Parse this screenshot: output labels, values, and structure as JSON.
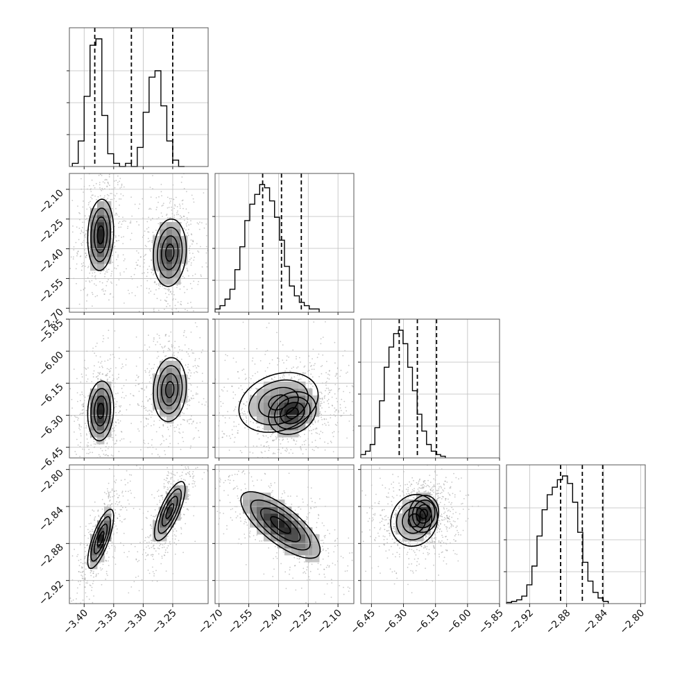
{
  "figure": {
    "type": "corner-plot",
    "description_colors": {
      "contour": "#000000",
      "density_dark": "#222222",
      "density_light": "#d9d9d9",
      "scatter": "#9a9a9a",
      "grid": "#bcbcbc"
    }
  },
  "chart_data": {
    "type": "corner",
    "parameters": [
      {
        "key": "p0",
        "range": [
          -3.425,
          -3.19
        ],
        "ticks": [
          "−3.40",
          "−3.35",
          "−3.30",
          "−3.25"
        ],
        "tick_values": [
          -3.4,
          -3.35,
          -3.3,
          -3.25
        ],
        "quantiles": [
          -3.382,
          -3.32,
          -3.25
        ],
        "histogram": {
          "bins_left": -3.42,
          "bin_width": 0.01,
          "counts": [
            1,
            8,
            22,
            38,
            40,
            16,
            4,
            1,
            0,
            1,
            0,
            6,
            17,
            28,
            30,
            19,
            8,
            2,
            0
          ]
        }
      },
      {
        "key": "p1",
        "range": [
          -2.72,
          -2.02
        ],
        "ticks": [
          "−2.70",
          "−2.55",
          "−2.40",
          "−2.25",
          "−2.10"
        ],
        "tick_values": [
          -2.7,
          -2.55,
          -2.4,
          -2.25,
          -2.1
        ],
        "quantiles": [
          -2.48,
          -2.385,
          -2.285
        ],
        "histogram": {
          "bins_left": -2.72,
          "bin_width": 0.025,
          "counts": [
            1,
            2,
            4,
            7,
            13,
            20,
            28,
            33,
            36,
            39,
            38,
            34,
            29,
            22,
            14,
            8,
            5,
            3,
            2,
            1,
            1
          ]
        }
      },
      {
        "key": "p2",
        "range": [
          -6.5,
          -5.85
        ],
        "ticks": [
          "−6.45",
          "−6.30",
          "−6.15",
          "−6.00",
          "−5.85"
        ],
        "tick_values": [
          -6.45,
          -6.3,
          -6.15,
          -6.0,
          -5.85
        ],
        "quantiles": [
          -6.32,
          -6.235,
          -6.145
        ],
        "histogram": {
          "bins_left": -6.5,
          "bin_width": 0.022,
          "counts": [
            1,
            2,
            4,
            9,
            17,
            27,
            33,
            37,
            38,
            34,
            27,
            20,
            13,
            8,
            4,
            2,
            1,
            0.5
          ]
        }
      },
      {
        "key": "p3",
        "range": [
          -2.945,
          -2.795
        ],
        "ticks": [
          "−2.92",
          "−2.88",
          "−2.84",
          "−2.80"
        ],
        "tick_values": [
          -2.92,
          -2.88,
          -2.84,
          -2.8
        ],
        "quantiles": [
          -2.8865,
          -2.863,
          -2.841
        ],
        "histogram": {
          "bins_left": -2.945,
          "bin_width": 0.0055,
          "counts": [
            0.3,
            0.6,
            1,
            2,
            5,
            10,
            18,
            25,
            29,
            31,
            33,
            34,
            32,
            27,
            19,
            11,
            6,
            3,
            1.5,
            0.6
          ]
        }
      }
    ],
    "pairs": [
      {
        "x": 0,
        "y": 1,
        "clusters": [
          {
            "cx": -3.372,
            "cy": -2.33,
            "sx": 0.011,
            "sy": 0.09,
            "rho": 0.1
          },
          {
            "cx": -3.255,
            "cy": -2.42,
            "sx": 0.014,
            "sy": 0.085,
            "rho": 0.1
          }
        ]
      },
      {
        "x": 0,
        "y": 2,
        "clusters": [
          {
            "cx": -3.372,
            "cy": -6.28,
            "sx": 0.011,
            "sy": 0.07,
            "rho": 0.1
          },
          {
            "cx": -3.255,
            "cy": -6.18,
            "sx": 0.014,
            "sy": 0.075,
            "rho": 0.1
          }
        ]
      },
      {
        "x": 0,
        "y": 3,
        "clusters": [
          {
            "cx": -3.372,
            "cy": -2.875,
            "sx": 0.011,
            "sy": 0.016,
            "rho": 0.75
          },
          {
            "cx": -3.255,
            "cy": -2.845,
            "sx": 0.013,
            "sy": 0.016,
            "rho": 0.75
          }
        ]
      },
      {
        "x": 1,
        "y": 2,
        "clusters": [
          {
            "cx": -2.4,
            "cy": -6.24,
            "sx": 0.1,
            "sy": 0.07,
            "rho": 0.25
          },
          {
            "cx": -2.33,
            "cy": -6.29,
            "sx": 0.06,
            "sy": 0.05,
            "rho": 0.2
          }
        ]
      },
      {
        "x": 1,
        "y": 3,
        "clusters": [
          {
            "cx": -2.39,
            "cy": -2.86,
            "sx": 0.1,
            "sy": 0.018,
            "rho": -0.75
          }
        ]
      },
      {
        "x": 2,
        "y": 3,
        "clusters": [
          {
            "cx": -6.25,
            "cy": -2.855,
            "sx": 0.055,
            "sy": 0.014,
            "rho": 0.1
          },
          {
            "cx": -6.205,
            "cy": -2.848,
            "sx": 0.035,
            "sy": 0.01,
            "rho": 0.1
          }
        ]
      }
    ],
    "contour_levels_sigma": [
      0.5,
      1.0,
      1.5,
      2.0
    ],
    "grid": true,
    "legend": "none"
  }
}
